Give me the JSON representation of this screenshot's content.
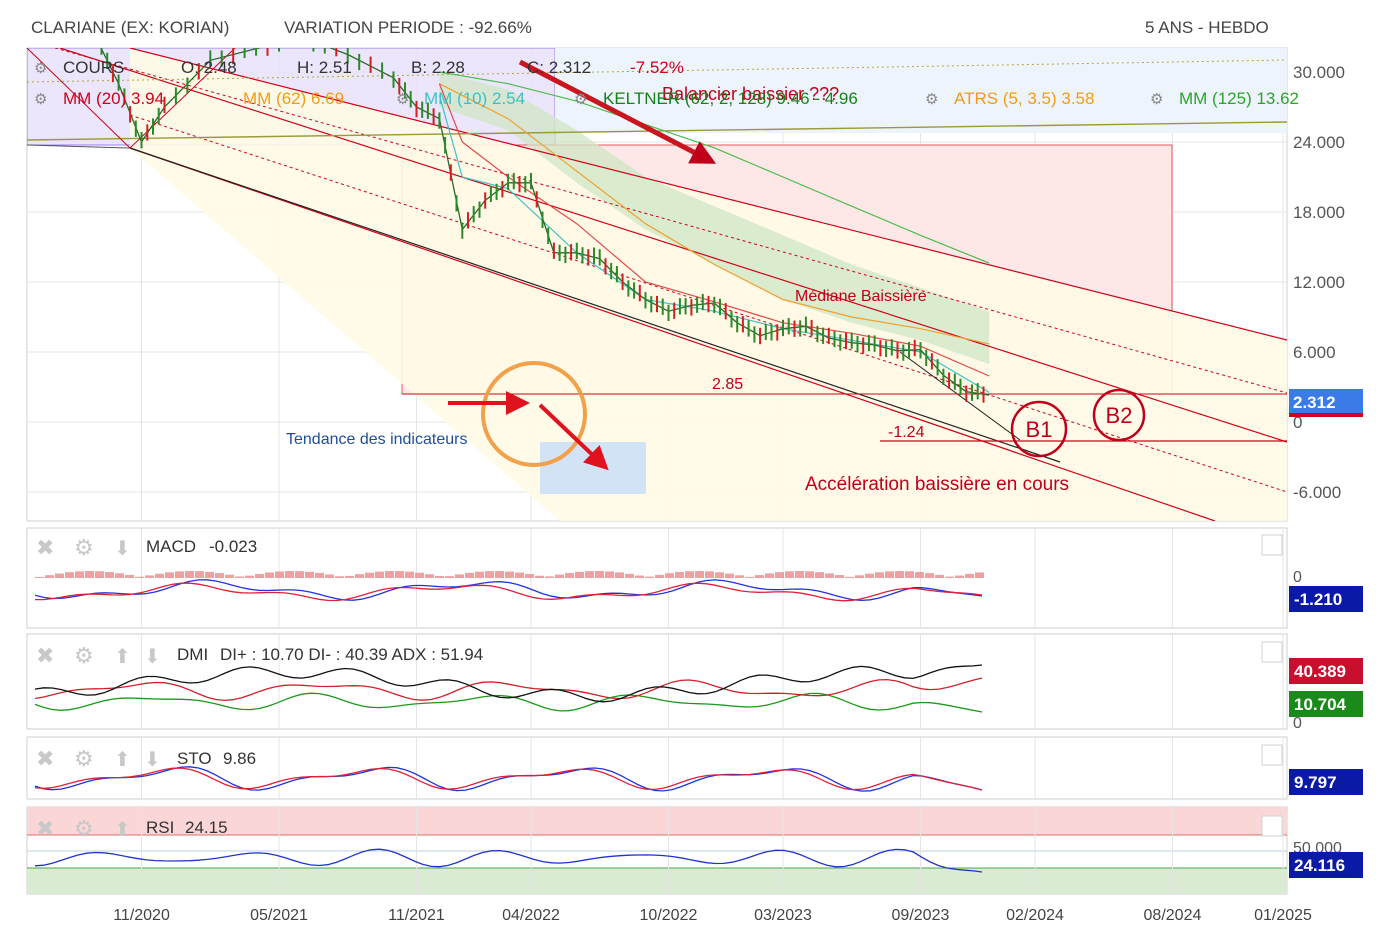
{
  "header": {
    "instrument": "CLARIANE (EX: KORIAN)",
    "variation": "VARIATION PERIODE : -92.66%",
    "timeframe": "5 ANS - HEBDO"
  },
  "quote": {
    "cours_label": "COURS",
    "open": "O: 2.48",
    "high": "H: 2.51",
    "low": "B: 2.28",
    "close": "C: 2.312",
    "change": "-7.52%"
  },
  "indicators": [
    {
      "label": "MM (20) 3.94",
      "color": "#d0021b"
    },
    {
      "label": "MM (62) 6.69",
      "color": "#f39c12"
    },
    {
      "label": "MM (10) 2.54",
      "color": "#3dc1c7"
    },
    {
      "label": "KELTNER (62, 2, 128) 9.46 - 4.96",
      "color": "#1a7f1a"
    },
    {
      "label": "ATRS (5, 3.5) 3.58",
      "color": "#f39c12"
    },
    {
      "label": "MM (125) 13.62",
      "color": "#2aa52a"
    }
  ],
  "annotations": {
    "balancier": "Balancier baissier ???",
    "mediane": "Médiane Baissière",
    "level_285": "2.85",
    "level_m124": "-1.24",
    "b1": "B1",
    "b2": "B2",
    "tendance": "Tendance des indicateurs",
    "acceleration": "Accélération baissière en cours"
  },
  "price_axis": {
    "ticks": [
      "30.000",
      "24.000",
      "18.000",
      "12.000",
      "6.000",
      "0",
      "-6.000"
    ],
    "last_price": "2.312"
  },
  "x_axis": {
    "ticks": [
      "11/2020",
      "05/2021",
      "11/2021",
      "04/2022",
      "10/2022",
      "03/2023",
      "09/2023",
      "02/2024",
      "08/2024",
      "01/2025"
    ]
  },
  "panels": {
    "macd": {
      "name": "MACD",
      "value": "-0.023",
      "axis_zero": "0",
      "badge": "-1.210",
      "badge_color": "#0a1aa6"
    },
    "dmi": {
      "name": "DMI",
      "value": "DI+ : 10.70 DI- : 40.39 ADX : 51.94",
      "axis_zero": "0",
      "badge_red": "40.389",
      "badge_green": "10.704"
    },
    "sto": {
      "name": "STO",
      "value": "9.86",
      "badge": "9.797",
      "badge_color": "#0a1aa6"
    },
    "rsi": {
      "name": "RSI",
      "value": "24.15",
      "axis_mid": "50.000",
      "badge": "24.116",
      "badge_color": "#0a1aa6"
    }
  },
  "colors": {
    "grid": "#e4e4e4",
    "channel_red": "#d0021b",
    "annotation_red": "#c0001a",
    "annotation_blue": "#1f4e99",
    "last_price_badge": "#3b7be8"
  },
  "chart_data": {
    "type": "line",
    "title": "CLARIANE (EX: KORIAN)",
    "xlabel": "",
    "ylabel": "",
    "ylim": [
      -8,
      32
    ],
    "x_range": [
      "2020-06",
      "2025-01"
    ],
    "grid": true,
    "series": [
      {
        "name": "COURS",
        "x": [
          "2020-09",
          "2020-10",
          "2020-11",
          "2020-12",
          "2021-02",
          "2021-04",
          "2021-06",
          "2021-08",
          "2021-10",
          "2021-11",
          "2021-12",
          "2022-01",
          "2022-02",
          "2022-03",
          "2022-04",
          "2022-05",
          "2022-06",
          "2022-07",
          "2022-08",
          "2022-09",
          "2022-10",
          "2022-11",
          "2022-12",
          "2023-01",
          "2023-02",
          "2023-03",
          "2023-04",
          "2023-05",
          "2023-06",
          "2023-07",
          "2023-08",
          "2023-09",
          "2023-10",
          "2023-11",
          "2023-12"
        ],
        "y": [
          33,
          29,
          24,
          27,
          31,
          32,
          33,
          31.5,
          29.5,
          27,
          26,
          16.5,
          19,
          20.5,
          20.5,
          14.5,
          14.5,
          14,
          12,
          10.5,
          9.5,
          10,
          10.2,
          8.5,
          7.4,
          8,
          8.2,
          7.2,
          6.8,
          6.6,
          6.1,
          6.2,
          4,
          2.6,
          2.31
        ]
      },
      {
        "name": "MM (20)",
        "x": [
          "2021-12",
          "2022-01",
          "2022-03",
          "2022-06",
          "2022-09",
          "2022-12",
          "2023-03",
          "2023-06",
          "2023-09",
          "2023-12"
        ],
        "y": [
          29,
          24,
          21,
          17,
          12,
          10.3,
          8.5,
          7.6,
          6.5,
          3.94
        ]
      },
      {
        "name": "MM (62)",
        "x": [
          "2021-12",
          "2022-03",
          "2022-06",
          "2022-09",
          "2022-12",
          "2023-03",
          "2023-06",
          "2023-09",
          "2023-12"
        ],
        "y": [
          29,
          26,
          21.5,
          17,
          13.5,
          10.5,
          9,
          8,
          6.69
        ]
      },
      {
        "name": "MM (10)",
        "x": [
          "2021-12",
          "2022-01",
          "2022-03",
          "2022-06",
          "2022-09",
          "2022-12",
          "2023-03",
          "2023-06",
          "2023-09",
          "2023-12"
        ],
        "y": [
          28,
          21,
          20,
          14.5,
          10.5,
          9.5,
          8,
          7,
          6,
          2.54
        ]
      },
      {
        "name": "MM (125)",
        "x": [
          "2021-12",
          "2022-03",
          "2022-06",
          "2022-09",
          "2022-12",
          "2023-03",
          "2023-06",
          "2023-09",
          "2023-12"
        ],
        "y": [
          30,
          29,
          27.5,
          25.5,
          23.5,
          21,
          18.5,
          16,
          13.62
        ]
      },
      {
        "name": "KELTNER (62, 2, 128)",
        "x": [
          "2021-12",
          "2022-03",
          "2022-06",
          "2022-09",
          "2022-12",
          "2023-03",
          "2023-06",
          "2023-09",
          "2023-12"
        ],
        "y": [
          30,
          28.5,
          25,
          21,
          18.5,
          16,
          13.5,
          11.5,
          9.46
        ],
        "y_low": [
          27,
          25,
          20.5,
          16.5,
          13.5,
          10.5,
          8.5,
          7,
          4.96
        ]
      }
    ],
    "levels": [
      2.85,
      -1.24
    ],
    "sub_panels": {
      "MACD": {
        "last": -0.023,
        "signal": -1.21
      },
      "DMI": {
        "di_plus": 10.7,
        "di_minus": 40.39,
        "adx": 51.94
      },
      "STO": {
        "last": 9.86,
        "signal": 9.797
      },
      "RSI": {
        "last": 24.15,
        "signal": 24.116
      }
    }
  }
}
